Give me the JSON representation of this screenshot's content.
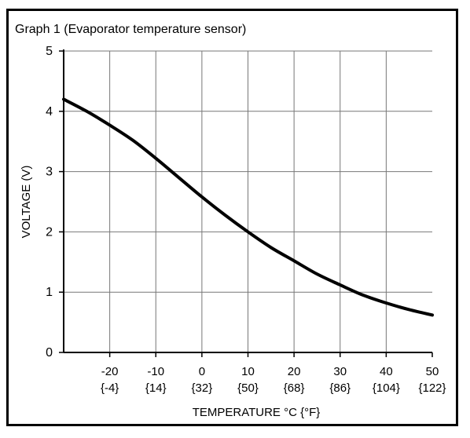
{
  "chart_data": {
    "type": "line",
    "title": "Graph 1 (Evaporator temperature sensor)",
    "xlabel": "TEMPERATURE  °C {°F}",
    "ylabel": "VOLTAGE (V)",
    "xlim": [
      -30,
      50
    ],
    "ylim": [
      0,
      5
    ],
    "grid": true,
    "x_ticks": [
      {
        "value": -20,
        "c": "-20",
        "f": "{-4}"
      },
      {
        "value": -10,
        "c": "-10",
        "f": "{14}"
      },
      {
        "value": 0,
        "c": "0",
        "f": "{32}"
      },
      {
        "value": 10,
        "c": "10",
        "f": "{50}"
      },
      {
        "value": 20,
        "c": "20",
        "f": "{68}"
      },
      {
        "value": 30,
        "c": "30",
        "f": "{86}"
      },
      {
        "value": 40,
        "c": "40",
        "f": "{104}"
      },
      {
        "value": 50,
        "c": "50",
        "f": "{122}"
      }
    ],
    "y_ticks": [
      {
        "value": 0,
        "label": "0"
      },
      {
        "value": 1,
        "label": "1"
      },
      {
        "value": 2,
        "label": "2"
      },
      {
        "value": 3,
        "label": "3"
      },
      {
        "value": 4,
        "label": "4"
      },
      {
        "value": 5,
        "label": "5"
      }
    ],
    "series": [
      {
        "color": "#000000",
        "x": [
          -30,
          -25,
          -20,
          -15,
          -10,
          -5,
          0,
          5,
          10,
          15,
          20,
          25,
          30,
          35,
          40,
          45,
          50
        ],
        "y": [
          4.2,
          4.0,
          3.77,
          3.52,
          3.22,
          2.9,
          2.58,
          2.28,
          2.0,
          1.74,
          1.52,
          1.3,
          1.12,
          0.95,
          0.82,
          0.71,
          0.62
        ]
      }
    ]
  }
}
